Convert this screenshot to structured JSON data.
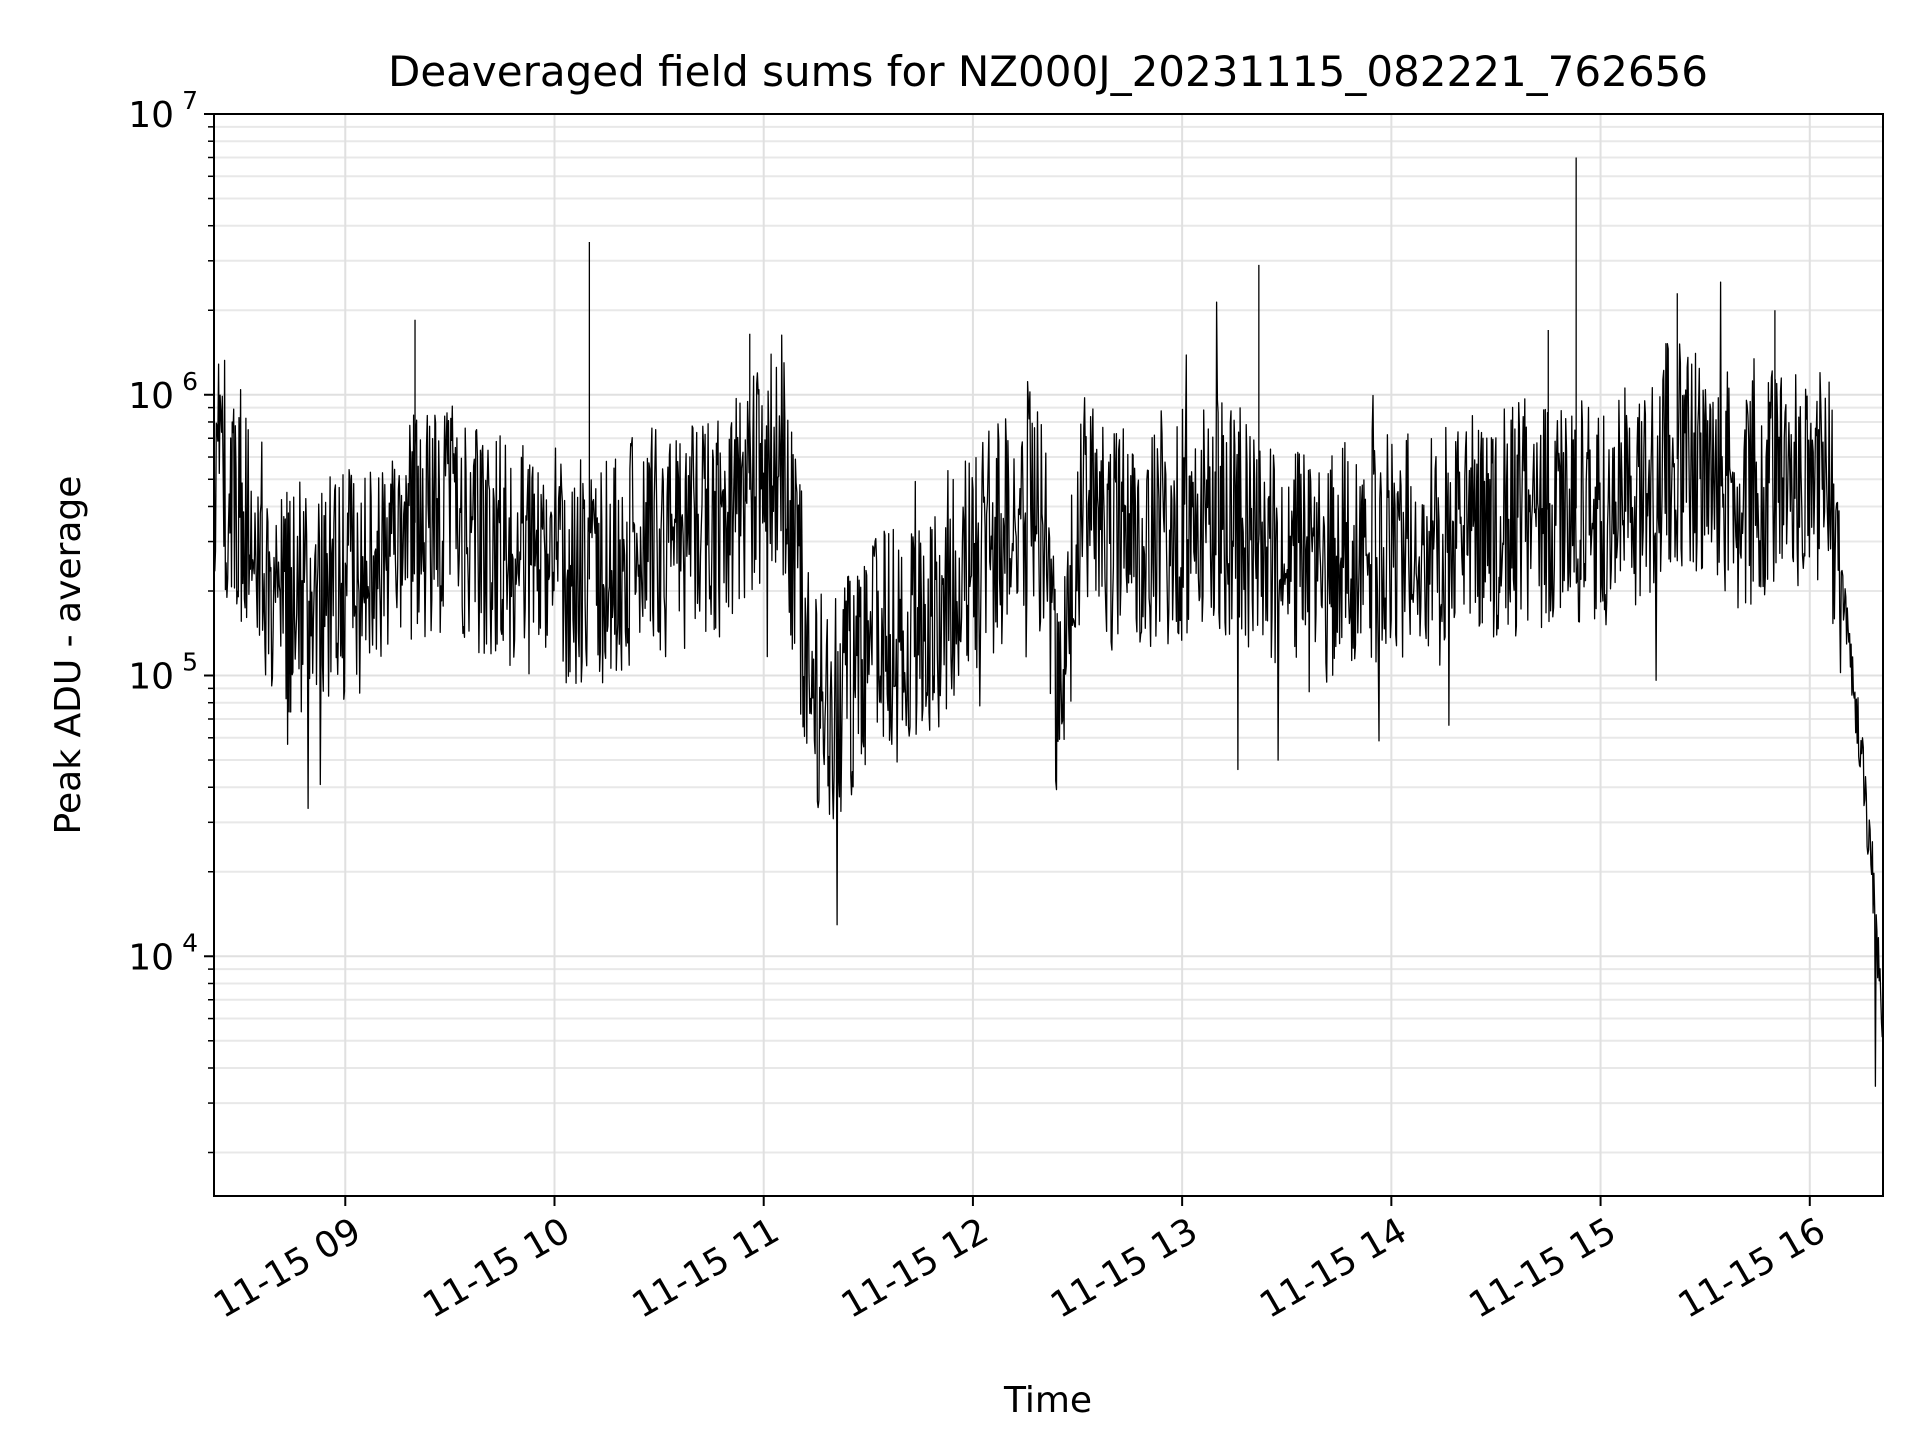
{
  "chart_data": {
    "type": "line",
    "title": "Deaveraged field sums for NZ000J_20231115_082221_762656",
    "xlabel": "Time",
    "ylabel": "Peak ADU - average",
    "y_scale": "log",
    "ylim": [
      1400,
      10000000
    ],
    "xlim": [
      "2023-11-15T08:22:21",
      "2023-11-15T16:21:00"
    ],
    "grid": true,
    "legend": "none",
    "line_color": "#000000",
    "x_ticks": [
      {
        "value": "2023-11-15T09:00:00",
        "label": "11-15 09"
      },
      {
        "value": "2023-11-15T10:00:00",
        "label": "11-15 10"
      },
      {
        "value": "2023-11-15T11:00:00",
        "label": "11-15 11"
      },
      {
        "value": "2023-11-15T12:00:00",
        "label": "11-15 12"
      },
      {
        "value": "2023-11-15T13:00:00",
        "label": "11-15 13"
      },
      {
        "value": "2023-11-15T14:00:00",
        "label": "11-15 14"
      },
      {
        "value": "2023-11-15T15:00:00",
        "label": "11-15 15"
      },
      {
        "value": "2023-11-15T16:00:00",
        "label": "11-15 16"
      }
    ],
    "y_ticks": [
      {
        "value": 10000,
        "base": "10",
        "exp": "4"
      },
      {
        "value": 100000,
        "base": "10",
        "exp": "5"
      },
      {
        "value": 1000000,
        "base": "10",
        "exp": "6"
      },
      {
        "value": 10000000,
        "base": "10",
        "exp": "7"
      }
    ],
    "series": [
      {
        "x": [
          "2023-11-15T08:22:21",
          "2023-11-15T08:30:00",
          "2023-11-15T08:40:00",
          "2023-11-15T08:45:00",
          "2023-11-15T08:50:00",
          "2023-11-15T09:00:00",
          "2023-11-15T09:10:00",
          "2023-11-15T09:20:00",
          "2023-11-15T09:30:00",
          "2023-11-15T09:40:00",
          "2023-11-15T09:50:00",
          "2023-11-15T10:00:00",
          "2023-11-15T10:10:00",
          "2023-11-15T10:20:00",
          "2023-11-15T10:30:00",
          "2023-11-15T10:40:00",
          "2023-11-15T10:50:00",
          "2023-11-15T11:00:00",
          "2023-11-15T11:05:00",
          "2023-11-15T11:10:00",
          "2023-11-15T11:15:00",
          "2023-11-15T11:20:00",
          "2023-11-15T11:30:00",
          "2023-11-15T11:40:00",
          "2023-11-15T11:50:00",
          "2023-11-15T12:00:00",
          "2023-11-15T12:10:00",
          "2023-11-15T12:15:00",
          "2023-11-15T12:20:00",
          "2023-11-15T12:25:00",
          "2023-11-15T12:30:00",
          "2023-11-15T12:40:00",
          "2023-11-15T12:50:00",
          "2023-11-15T13:00:00",
          "2023-11-15T13:10:00",
          "2023-11-15T13:20:00",
          "2023-11-15T13:30:00",
          "2023-11-15T13:40:00",
          "2023-11-15T13:50:00",
          "2023-11-15T14:00:00",
          "2023-11-15T14:10:00",
          "2023-11-15T14:20:00",
          "2023-11-15T14:30:00",
          "2023-11-15T14:40:00",
          "2023-11-15T14:50:00",
          "2023-11-15T15:00:00",
          "2023-11-15T15:10:00",
          "2023-11-15T15:20:00",
          "2023-11-15T15:30:00",
          "2023-11-15T15:40:00",
          "2023-11-15T15:50:00",
          "2023-11-15T16:00:00",
          "2023-11-15T16:05:00",
          "2023-11-15T16:10:00",
          "2023-11-15T16:15:00",
          "2023-11-15T16:18:00",
          "2023-11-15T16:21:00"
        ],
        "values": [
          600000,
          400000,
          220000,
          180000,
          200000,
          210000,
          250000,
          350000,
          380000,
          300000,
          250000,
          260000,
          220000,
          280000,
          300000,
          320000,
          350000,
          550000,
          650000,
          200000,
          90000,
          70000,
          120000,
          130000,
          160000,
          250000,
          350000,
          450000,
          350000,
          70000,
          400000,
          300000,
          320000,
          350000,
          380000,
          320000,
          250000,
          220000,
          280000,
          300000,
          260000,
          350000,
          330000,
          380000,
          400000,
          380000,
          450000,
          600000,
          550000,
          450000,
          480000,
          550000,
          500000,
          180000,
          50000,
          20000,
          5000
        ]
      }
    ],
    "spikes": [
      {
        "x": "2023-11-15T10:10:00",
        "y": 3500000
      },
      {
        "x": "2023-11-15T13:22:00",
        "y": 2900000
      },
      {
        "x": "2023-11-15T14:53:00",
        "y": 7000000
      },
      {
        "x": "2023-11-15T15:22:00",
        "y": 2300000
      },
      {
        "x": "2023-11-15T15:50:00",
        "y": 2000000
      },
      {
        "x": "2023-11-15T09:20:00",
        "y": 1850000
      },
      {
        "x": "2023-11-15T10:56:00",
        "y": 1650000
      },
      {
        "x": "2023-11-15T14:45:00",
        "y": 1700000
      }
    ]
  }
}
